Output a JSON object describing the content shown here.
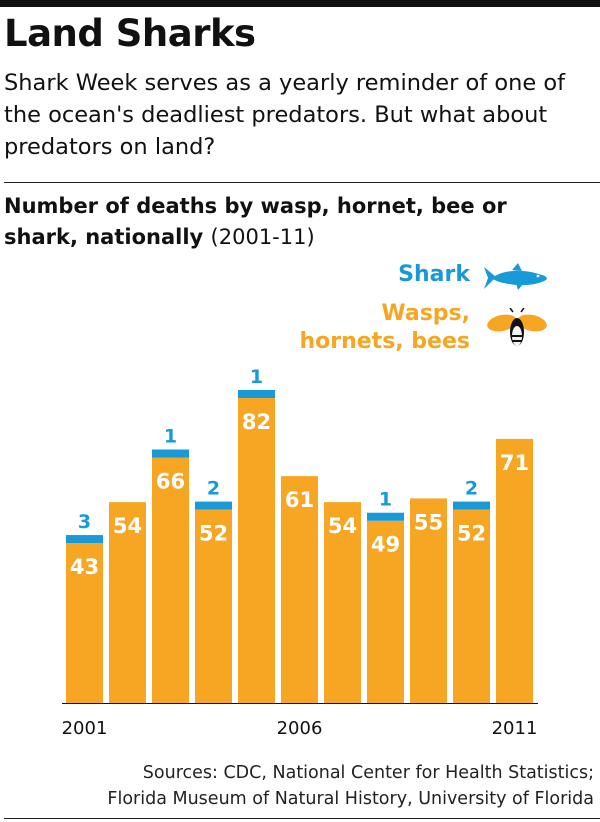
{
  "header": {
    "title": "Land Sharks",
    "subtitle": "Shark Week serves as a yearly reminder of one of the ocean's deadliest predators. But what about predators on land?"
  },
  "chart_data": {
    "type": "bar",
    "stacked": true,
    "title": "Number of deaths by wasp, hornet, bee or shark, nationally",
    "subtitle": "(2001-11)",
    "categories": [
      "2001",
      "2002",
      "2003",
      "2004",
      "2005",
      "2006",
      "2007",
      "2008",
      "2009",
      "2010",
      "2011"
    ],
    "tick_labels": [
      "2001",
      "2006",
      "2011"
    ],
    "series": [
      {
        "name": "Wasps, hornets, bees",
        "color": "#f6a623",
        "values": [
          43,
          54,
          66,
          52,
          82,
          61,
          54,
          49,
          55,
          52,
          71
        ]
      },
      {
        "name": "Shark",
        "color": "#199ad8",
        "values": [
          3,
          0,
          1,
          2,
          1,
          0,
          0,
          1,
          0,
          2,
          0
        ]
      }
    ],
    "ylim": [
      0,
      90
    ],
    "legend_position": "top-right",
    "legend": {
      "shark": "Shark",
      "bees": "Wasps, hornets, bees",
      "shark_icon": "shark-icon",
      "bee_icon": "bee-icon"
    },
    "xlabel": "",
    "ylabel": ""
  },
  "footer": {
    "sources_line1": "Sources: CDC, National Center for Health Statistics;",
    "sources_line2": "Florida Museum of Natural History, University of Florida"
  }
}
